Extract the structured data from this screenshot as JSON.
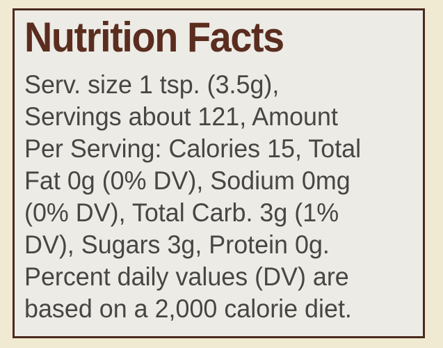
{
  "title": "Nutrition Facts",
  "lines": [
    "Serv. size 1 tsp. (3.5g),",
    "Servings about 121, Amount",
    "Per Serving: Calories 15, Total",
    "Fat 0g (0% DV), Sodium 0mg",
    "(0% DV), Total Carb. 3g (1%",
    "DV), Sugars 3g, Protein 0g.",
    "Percent daily values (DV) are",
    "based on a 2,000 calorie diet."
  ]
}
